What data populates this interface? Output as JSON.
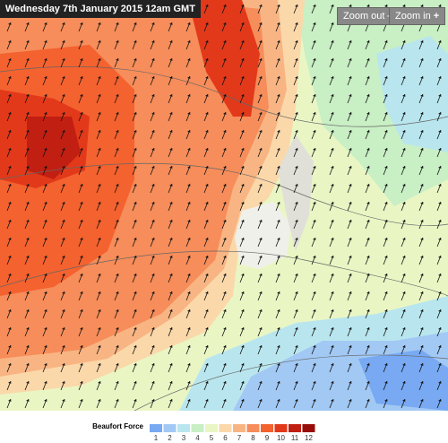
{
  "header": {
    "title": "Wednesday 7th January 2015 12am GMT"
  },
  "controls": {
    "zoom_out": "Zoom out",
    "zoom_in": "Zoom in"
  },
  "legend": {
    "title": "Beaufort Force",
    "items": [
      {
        "label": 1,
        "color": "#78a9f2"
      },
      {
        "label": 2,
        "color": "#a2c9f4"
      },
      {
        "label": 3,
        "color": "#b9e6ee"
      },
      {
        "label": 4,
        "color": "#c9efc4"
      },
      {
        "label": 5,
        "color": "#e9f6c4"
      },
      {
        "label": 6,
        "color": "#fbd8aa"
      },
      {
        "label": 7,
        "color": "#f8b583"
      },
      {
        "label": 8,
        "color": "#f68d5a"
      },
      {
        "label": 9,
        "color": "#f4622f"
      },
      {
        "label": 10,
        "color": "#e2391a"
      },
      {
        "label": 11,
        "color": "#c11f12"
      },
      {
        "label": 12,
        "color": "#980d09"
      }
    ]
  }
}
